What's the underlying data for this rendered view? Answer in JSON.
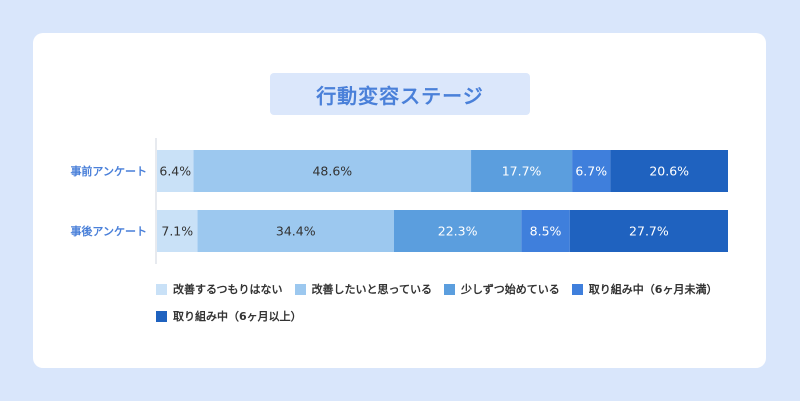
{
  "chart_data": {
    "type": "bar",
    "orientation": "horizontal",
    "stacked": true,
    "percent": true,
    "title": "行動変容ステージ",
    "categories": [
      "事前アンケート",
      "事後アンケート"
    ],
    "series": [
      {
        "name": "改善するつもりはない",
        "values": [
          6.4,
          7.1
        ],
        "color": "#c9e1f7"
      },
      {
        "name": "改善したいと思っている",
        "values": [
          48.6,
          34.4
        ],
        "color": "#9cc8ef"
      },
      {
        "name": "少しずつ始めている",
        "values": [
          17.7,
          22.3
        ],
        "color": "#5b9ede"
      },
      {
        "name": "取り組み中（6ヶ月未満）",
        "values": [
          6.7,
          8.5
        ],
        "color": "#3f7fdc"
      },
      {
        "name": "取り組み中（6ヶ月以上）",
        "values": [
          20.6,
          27.7
        ],
        "color": "#1f62bf"
      }
    ],
    "value_suffix": "%",
    "legend_position": "bottom",
    "grid": false
  },
  "colors": {
    "background": "#d9e6fb",
    "card": "#ffffff",
    "title_box": "#dbe7fb",
    "title_text": "#4a80d9",
    "category_label": "#4a80d9",
    "label_dark": "#333333",
    "label_light": "#ffffff"
  }
}
